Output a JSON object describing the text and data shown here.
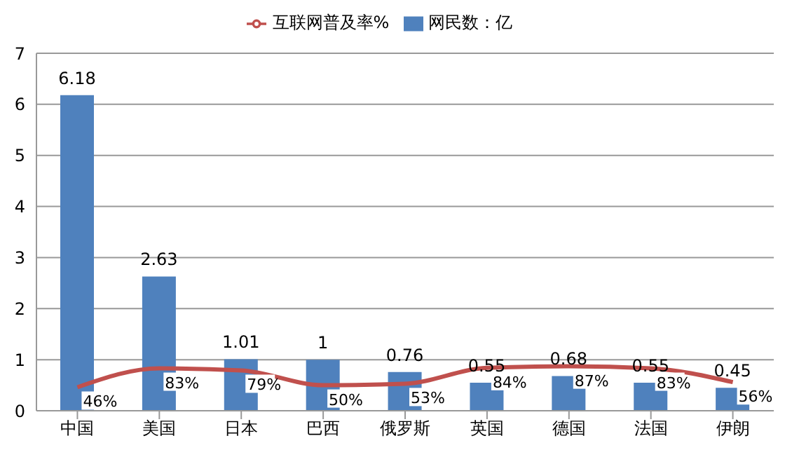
{
  "chart_data": {
    "type": "bar",
    "categories": [
      "中国",
      "美国",
      "日本",
      "巴西",
      "俄罗斯",
      "英国",
      "德国",
      "法国",
      "伊朗"
    ],
    "series": [
      {
        "name": "网民数：亿",
        "color": "#4f81bd",
        "values": [
          6.18,
          2.63,
          1.01,
          1,
          0.76,
          0.55,
          0.68,
          0.55,
          0.45
        ]
      },
      {
        "name": "互联网普及率%",
        "type": "line",
        "color": "#c0504d",
        "values": [
          0.46,
          0.83,
          0.79,
          0.5,
          0.53,
          0.84,
          0.87,
          0.83,
          0.56
        ],
        "value_labels": [
          "46%",
          "83%",
          "79%",
          "50%",
          "53%",
          "84%",
          "87%",
          "83%",
          "56%"
        ]
      }
    ],
    "ylim": [
      0,
      7
    ],
    "yticks": [
      0,
      1,
      2,
      3,
      4,
      5,
      6,
      7
    ],
    "grid": "y",
    "legend": "top",
    "data_labels": true,
    "marker": "none"
  }
}
